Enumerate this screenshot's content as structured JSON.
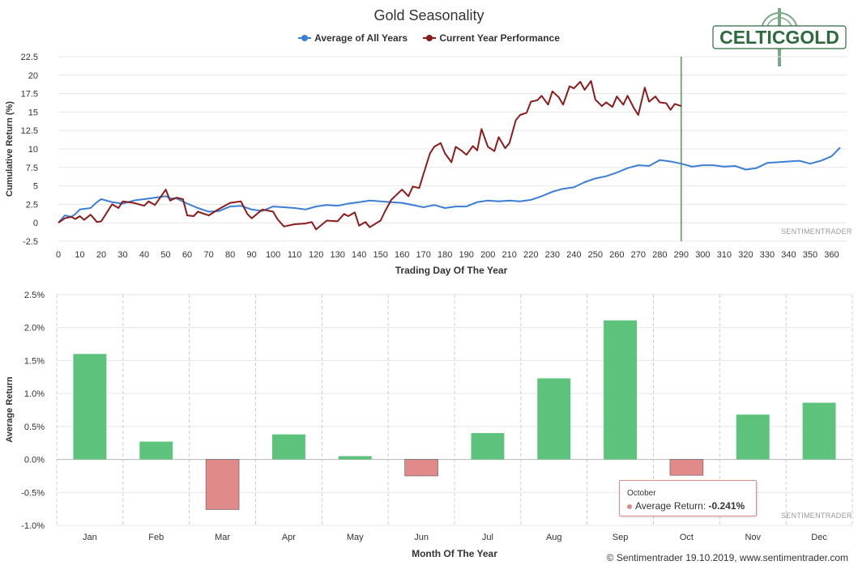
{
  "title": "Gold Seasonality",
  "legend": [
    {
      "name": "Average of All Years",
      "color": "#3a7fd5"
    },
    {
      "name": "Current Year Performance",
      "color": "#8b1c1c"
    }
  ],
  "logo_text": "CELTICGOLD",
  "watermark": "SENTIMENTRADER",
  "footer": "© Sentimentrader 19.10.2019, www.sentimentrader.com",
  "tooltip": {
    "month": "October",
    "label": "Average Return: ",
    "value": "-0.241%"
  },
  "chart_data": [
    {
      "type": "line",
      "title": "Gold Seasonality",
      "xlabel": "Trading Day Of The Year",
      "ylabel": "Cumulative Return (%)",
      "xlim": [
        0,
        367
      ],
      "ylim": [
        -2.5,
        22.5
      ],
      "x_ticks": [
        0,
        10,
        20,
        30,
        40,
        50,
        60,
        70,
        80,
        90,
        100,
        110,
        120,
        130,
        140,
        150,
        160,
        170,
        180,
        190,
        200,
        210,
        220,
        230,
        240,
        250,
        260,
        270,
        280,
        290,
        300,
        310,
        320,
        330,
        340,
        350,
        360
      ],
      "y_ticks": [
        "-2.5",
        "0",
        "2.5",
        "5",
        "7.5",
        "10",
        "12.5",
        "15",
        "17.5",
        "20",
        "22.5"
      ],
      "marker_line_x": 290,
      "series": [
        {
          "name": "Average of All Years",
          "color": "#3a7fd5",
          "x": [
            0,
            3,
            6,
            8,
            10,
            15,
            18,
            20,
            25,
            30,
            35,
            40,
            45,
            50,
            52,
            55,
            60,
            65,
            70,
            75,
            80,
            85,
            90,
            95,
            100,
            105,
            110,
            115,
            120,
            125,
            130,
            135,
            140,
            145,
            150,
            155,
            160,
            165,
            170,
            175,
            180,
            185,
            190,
            195,
            200,
            205,
            210,
            215,
            220,
            225,
            230,
            235,
            240,
            245,
            250,
            255,
            260,
            265,
            270,
            275,
            280,
            285,
            290,
            295,
            300,
            305,
            310,
            315,
            320,
            325,
            330,
            335,
            340,
            345,
            350,
            355,
            360,
            364
          ],
          "y": [
            0,
            1.0,
            0.8,
            1.2,
            1.8,
            2.0,
            2.8,
            3.2,
            2.8,
            2.6,
            3.0,
            3.2,
            3.4,
            3.6,
            3.3,
            3.3,
            2.6,
            2.0,
            1.5,
            1.6,
            2.2,
            2.3,
            1.8,
            1.6,
            2.2,
            2.1,
            2.0,
            1.8,
            2.2,
            2.4,
            2.3,
            2.6,
            2.8,
            3.0,
            2.9,
            2.8,
            2.7,
            2.4,
            2.1,
            2.4,
            2.0,
            2.2,
            2.2,
            2.8,
            3.0,
            2.9,
            3.0,
            2.9,
            3.1,
            3.6,
            4.2,
            4.6,
            4.8,
            5.5,
            6.0,
            6.3,
            6.8,
            7.4,
            7.8,
            7.7,
            8.5,
            8.3,
            8.0,
            7.6,
            7.8,
            7.8,
            7.6,
            7.7,
            7.2,
            7.4,
            8.1,
            8.2,
            8.3,
            8.4,
            8.0,
            8.4,
            9.0,
            10.2
          ]
        },
        {
          "name": "Current Year Performance",
          "color": "#8b1c1c",
          "x": [
            0,
            3,
            6,
            8,
            10,
            12,
            15,
            18,
            20,
            25,
            28,
            30,
            35,
            40,
            42,
            45,
            50,
            52,
            55,
            58,
            60,
            63,
            65,
            70,
            75,
            80,
            85,
            88,
            90,
            95,
            100,
            102,
            105,
            110,
            115,
            118,
            120,
            125,
            130,
            133,
            135,
            138,
            140,
            143,
            145,
            150,
            152,
            155,
            160,
            163,
            165,
            168,
            170,
            173,
            175,
            178,
            180,
            183,
            185,
            188,
            190,
            193,
            195,
            197,
            200,
            203,
            205,
            208,
            210,
            213,
            215,
            218,
            220,
            223,
            225,
            228,
            230,
            233,
            235,
            238,
            240,
            243,
            245,
            248,
            250,
            253,
            255,
            258,
            260,
            263,
            265,
            268,
            270,
            273,
            275,
            278,
            280,
            283,
            285,
            287,
            290
          ],
          "y": [
            0,
            0.6,
            0.8,
            0.5,
            0.9,
            0.4,
            1.1,
            0.1,
            0.2,
            2.5,
            2.0,
            2.9,
            2.7,
            2.3,
            2.9,
            2.4,
            4.5,
            3.0,
            3.4,
            3.2,
            1.0,
            0.9,
            1.5,
            1.0,
            1.9,
            2.7,
            2.9,
            1.2,
            0.6,
            1.8,
            1.5,
            0.5,
            -0.5,
            -0.2,
            -0.1,
            0.1,
            -0.9,
            0.3,
            0.2,
            1.2,
            0.9,
            1.4,
            -0.4,
            0.1,
            -0.6,
            0.3,
            1.5,
            3.1,
            4.5,
            3.6,
            4.9,
            4.7,
            6.6,
            9.4,
            10.3,
            10.8,
            9.4,
            8.2,
            10.3,
            9.7,
            9.2,
            10.4,
            9.8,
            12.7,
            10.3,
            9.7,
            11.6,
            10.1,
            10.8,
            13.9,
            14.6,
            14.9,
            16.4,
            16.6,
            17.2,
            16.0,
            17.8,
            17.0,
            16.0,
            18.5,
            18.2,
            19.1,
            18.0,
            19.2,
            16.7,
            15.8,
            16.3,
            15.7,
            17.1,
            16.0,
            17.2,
            15.5,
            14.6,
            18.3,
            16.4,
            17.1,
            16.3,
            16.2,
            15.3,
            16.1,
            15.8
          ]
        }
      ]
    },
    {
      "type": "bar",
      "xlabel": "Month Of The Year",
      "ylabel": "Average Return",
      "ylim": [
        -1.0,
        2.5
      ],
      "y_ticks": [
        "2.5%",
        "2.0%",
        "1.5%",
        "1.0%",
        "0.5%",
        "0.0%",
        "-0.5%",
        "-1.0%"
      ],
      "categories": [
        "Jan",
        "Feb",
        "Mar",
        "Apr",
        "May",
        "Jun",
        "Jul",
        "Aug",
        "Sep",
        "Oct",
        "Nov",
        "Dec"
      ],
      "values": [
        1.6,
        0.27,
        -0.76,
        0.38,
        0.05,
        -0.25,
        0.4,
        1.23,
        2.11,
        -0.241,
        0.68,
        0.86
      ],
      "positive_color": "#5cc27c",
      "negative_color": "#e08a8a"
    }
  ]
}
